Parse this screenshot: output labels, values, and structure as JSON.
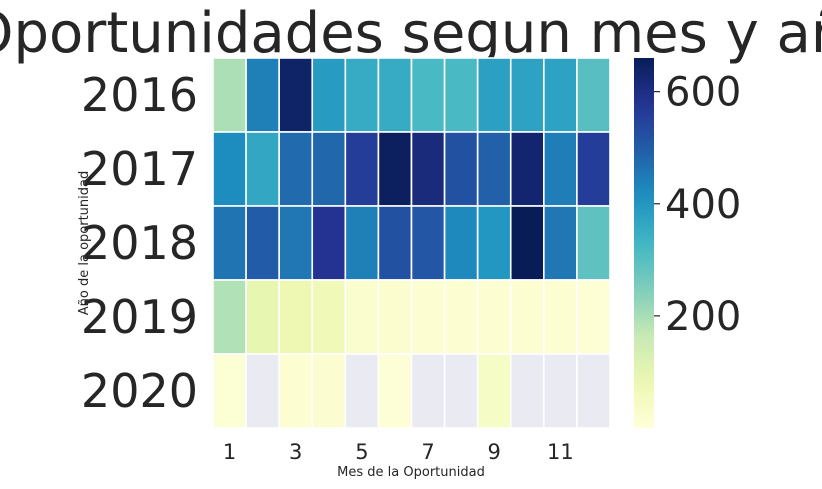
{
  "chart_data": {
    "type": "heatmap",
    "title": "Oportunidades segun mes y año",
    "xlabel": "Mes de la Oportunidad",
    "ylabel": "Año de la oportunidad",
    "rows": [
      "2016",
      "2017",
      "2018",
      "2019",
      "2020"
    ],
    "columns": [
      1,
      2,
      3,
      4,
      5,
      6,
      7,
      8,
      9,
      10,
      11,
      12
    ],
    "x_tick_labels": [
      "1",
      "3",
      "5",
      "7",
      "9",
      "11"
    ],
    "values": [
      [
        195,
        440,
        640,
        390,
        355,
        355,
        320,
        320,
        380,
        375,
        375,
        300
      ],
      [
        420,
        365,
        475,
        480,
        560,
        650,
        610,
        520,
        490,
        630,
        445,
        560
      ],
      [
        460,
        500,
        455,
        580,
        440,
        520,
        510,
        425,
        400,
        670,
        455,
        290
      ],
      [
        190,
        95,
        80,
        70,
        25,
        20,
        15,
        15,
        15,
        15,
        15,
        10
      ],
      [
        12,
        null,
        15,
        18,
        null,
        8,
        null,
        null,
        40,
        null,
        null,
        null
      ]
    ],
    "missing_color": "#eaeaf2",
    "colormap": "YlGnBu",
    "vmin": 0,
    "vmax": 660,
    "colorbar_ticks": [
      200,
      400,
      600
    ],
    "colors": {
      "cell_border": "#ffffff",
      "text": "#262626"
    }
  }
}
